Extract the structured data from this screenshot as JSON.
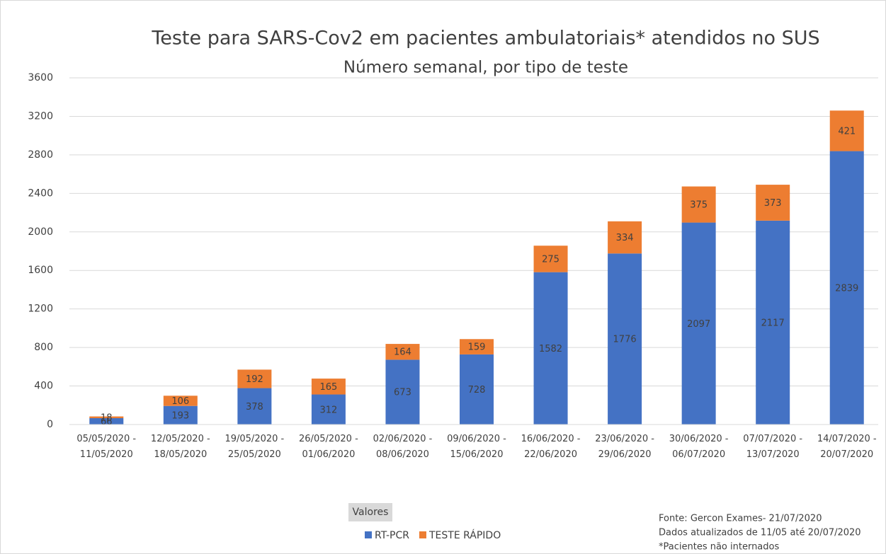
{
  "chart_data": {
    "type": "stacked_bar",
    "title": "Teste para SARS-Cov2 em pacientes ambulatoriais* atendidos no SUS",
    "subtitle": "Número semanal, por tipo de teste",
    "categories": [
      [
        "05/05/2020 -",
        "11/05/2020"
      ],
      [
        "12/05/2020 -",
        "18/05/2020"
      ],
      [
        "19/05/2020 -",
        "25/05/2020"
      ],
      [
        "26/05/2020 -",
        "01/06/2020"
      ],
      [
        "02/06/2020 -",
        "08/06/2020"
      ],
      [
        "09/06/2020 -",
        "15/06/2020"
      ],
      [
        "16/06/2020 -",
        "22/06/2020"
      ],
      [
        "23/06/2020 -",
        "29/06/2020"
      ],
      [
        "30/06/2020 -",
        "06/07/2020"
      ],
      [
        "07/07/2020 -",
        "13/07/2020"
      ],
      [
        "14/07/2020 -",
        "20/07/2020"
      ]
    ],
    "series": [
      {
        "name": "RT-PCR",
        "color": "#4472c4",
        "values": [
          66,
          193,
          378,
          312,
          673,
          728,
          1582,
          1776,
          2097,
          2117,
          2839
        ]
      },
      {
        "name": "TESTE RÁPIDO",
        "color": "#ed7d31",
        "values": [
          18,
          106,
          192,
          165,
          164,
          159,
          275,
          334,
          375,
          373,
          421
        ]
      }
    ],
    "ylim": [
      0,
      3600
    ],
    "yticks": [
      0,
      400,
      800,
      1200,
      1600,
      2000,
      2400,
      2800,
      3200,
      3600
    ],
    "grid": true,
    "legend_title": "Valores",
    "annotations": [
      "Fonte: Gercon Exames- 21/07/2020",
      "Dados atualizados de 11/05 até 20/07/2020",
      "*Pacientes não internados"
    ]
  }
}
